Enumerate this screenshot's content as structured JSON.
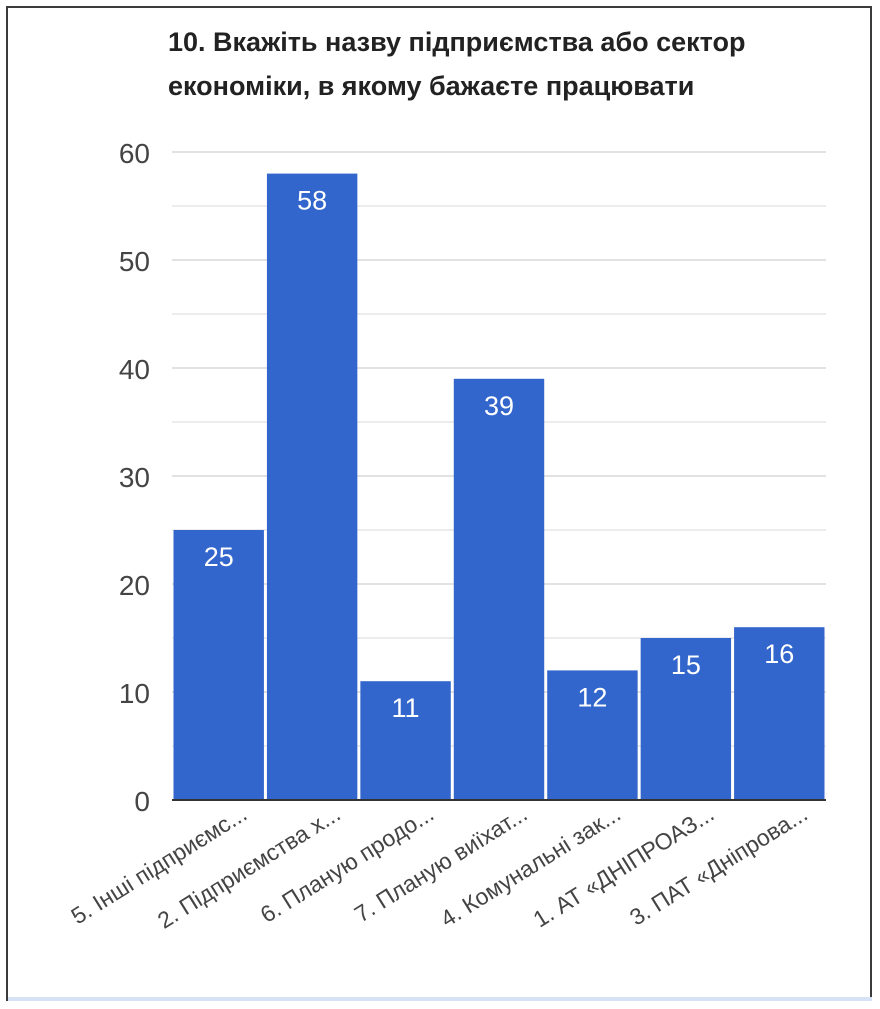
{
  "chart_data": {
    "type": "bar",
    "title": "10. Вкажіть назву підприємства або сектор економіки, в якому бажаєте працювати",
    "categories": [
      "5. Інші підприємс...",
      "2. Підприємства х...",
      "6. Планую продо...",
      "7. Планую виїхат...",
      "4. Комунальні зак...",
      "1. АТ «ДНІПРОАЗ...",
      "3. ПАТ «Дніпрова..."
    ],
    "values": [
      25,
      58,
      11,
      39,
      12,
      15,
      16
    ],
    "ylim": [
      0,
      60
    ],
    "yticks": [
      "0",
      "10",
      "20",
      "30",
      "40",
      "50",
      "60"
    ],
    "grid": true,
    "data_labels": true,
    "colors": {
      "bar": "#3366cc",
      "grid": "#d9d9d9",
      "baseline": "#333333",
      "label": "#ffffff",
      "tick": "#444444"
    }
  }
}
